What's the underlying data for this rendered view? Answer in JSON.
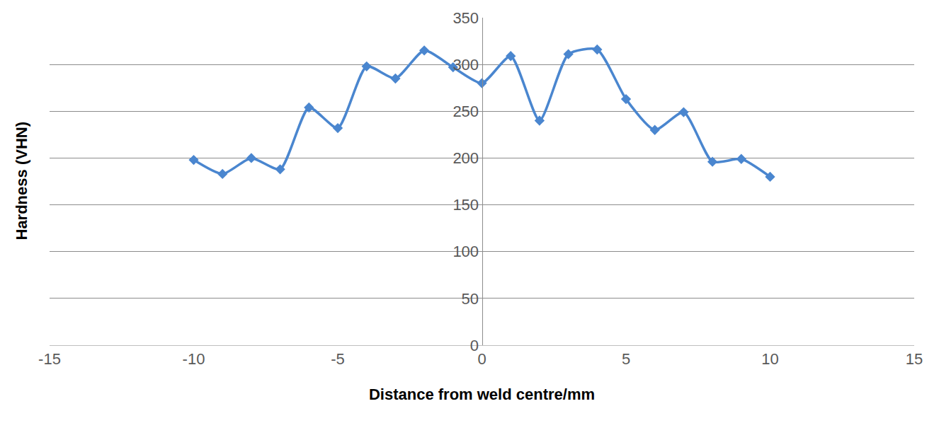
{
  "chart_data": {
    "type": "line",
    "x_label": "Distance from weld centre/mm",
    "y_label": "Hardness (VHN)",
    "x": [
      -10,
      -9,
      -8,
      -7,
      -6,
      -5,
      -4,
      -3,
      -2,
      -1,
      0,
      1,
      2,
      3,
      4,
      5,
      6,
      7,
      8,
      9,
      10
    ],
    "values": [
      198,
      183,
      200,
      188,
      254,
      232,
      298,
      285,
      315,
      297,
      280,
      309,
      240,
      311,
      316,
      263,
      230,
      249,
      196,
      199,
      180
    ],
    "color": "#4a86cf",
    "marker": "diamond",
    "line_style": "spline",
    "xlim": [
      -15,
      15
    ],
    "xticks": [
      -15,
      -10,
      -5,
      0,
      5,
      10,
      15
    ],
    "ylim": [
      0,
      350
    ],
    "yticks": [
      0,
      50,
      100,
      150,
      200,
      250,
      300,
      350
    ],
    "grid": true
  }
}
